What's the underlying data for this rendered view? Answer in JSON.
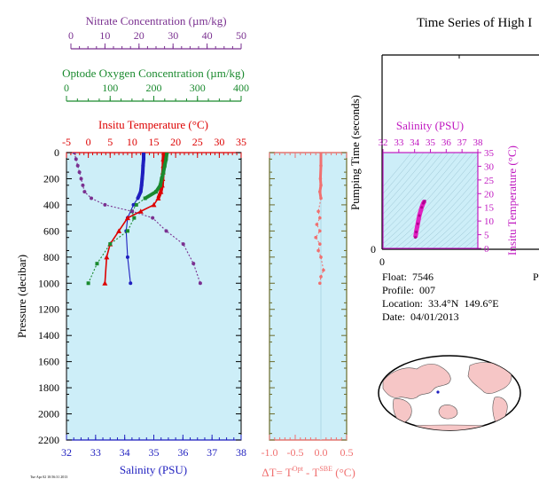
{
  "title": "Time Series of High I",
  "info": {
    "float": "Float:  7546",
    "profile": "Profile:  007",
    "location": "Location:  33.4°N  149.6°E",
    "date": "Date:  04/01/2013",
    "cut_letter": "P"
  },
  "footnote": "Tue Apr 02 10:56:31 2013",
  "chart_data": [
    {
      "type": "line",
      "name": "profile",
      "ylabel": "Pressure (decibar)",
      "ylim": [
        2200,
        0
      ],
      "yticks": [
        0,
        200,
        400,
        600,
        800,
        1000,
        1200,
        1400,
        1600,
        1800,
        2000,
        2200
      ],
      "axes": {
        "salinity": {
          "label": "Salinity (PSU)",
          "range": [
            32,
            38
          ],
          "ticks": [
            32,
            33,
            34,
            35,
            36,
            37,
            38
          ],
          "color": "#1f1fbf"
        },
        "temperature": {
          "label": "Insitu Temperature (°C)",
          "range": [
            -5,
            35
          ],
          "ticks": [
            -5,
            0,
            5,
            10,
            15,
            20,
            25,
            30,
            35
          ],
          "color": "#dd0000"
        },
        "oxygen": {
          "label": "Optode Oxygen Concentration (µm/kg)",
          "range": [
            0,
            400
          ],
          "ticks": [
            0,
            100,
            200,
            300,
            400
          ],
          "color": "#1a8a2e"
        },
        "nitrate": {
          "label": "Nitrate Concentration (µm/kg)",
          "range": [
            0,
            50
          ],
          "ticks": [
            0,
            10,
            20,
            30,
            40,
            50
          ],
          "color": "#7a3090"
        }
      },
      "series": [
        {
          "name": "Salinity (PSU)",
          "color": "#1f1fbf",
          "marker": "circle",
          "x": [
            34.65,
            34.65,
            34.63,
            34.62,
            34.6,
            34.58,
            34.55,
            34.45,
            34.3,
            34.1,
            34.05,
            34.1,
            34.2
          ],
          "y": [
            0,
            50,
            100,
            150,
            200,
            250,
            300,
            350,
            400,
            500,
            600,
            800,
            1000
          ]
        },
        {
          "name": "Insitu Temperature (°C)",
          "color": "#dd0000",
          "marker": "triangle",
          "x": [
            17.3,
            17.2,
            17.2,
            17.1,
            17.0,
            16.9,
            16.6,
            16.0,
            15.0,
            12.0,
            9.0,
            7.0,
            5.0,
            4.2,
            3.8
          ],
          "y": [
            0,
            50,
            100,
            150,
            200,
            250,
            300,
            350,
            400,
            450,
            500,
            600,
            700,
            800,
            1000
          ]
        },
        {
          "name": "Optode Oxygen Concentration (µm/kg)",
          "color": "#1a8a2e",
          "marker": "square",
          "x": [
            230,
            228,
            225,
            222,
            218,
            215,
            205,
            180,
            160,
            150,
            155,
            140,
            100,
            70,
            50
          ],
          "y": [
            0,
            50,
            100,
            150,
            200,
            250,
            300,
            350,
            400,
            450,
            500,
            600,
            700,
            850,
            1000
          ]
        },
        {
          "name": "Nitrate Concentration (µm/kg)",
          "color": "#7a3090",
          "marker": "circle",
          "x": [
            1,
            1.5,
            2,
            2.5,
            3,
            3.5,
            4,
            6,
            10,
            18,
            24,
            28,
            33,
            36,
            38
          ],
          "y": [
            0,
            50,
            100,
            150,
            200,
            250,
            300,
            350,
            400,
            450,
            500,
            600,
            700,
            850,
            1000
          ]
        }
      ]
    },
    {
      "type": "line",
      "name": "delta_t",
      "xlabel": "ΔT= Tᴼᵖᵗ - Tˢᴮᴱ (°C)",
      "xlabel_base": "ΔT= T",
      "xlabel_sup1": "Opt",
      "xlabel_mid": " - T",
      "xlabel_sup2": "SBE",
      "xlabel_end": " (°C)",
      "xlim": [
        -1.0,
        0.5
      ],
      "xticks": [
        -1.0,
        -0.5,
        0.0,
        0.5
      ],
      "xtick_labels": [
        "-1.0",
        "-0.5",
        "0.0",
        "0.5"
      ],
      "ylim": [
        2200,
        0
      ],
      "series": [
        {
          "name": "delta_t",
          "color": "#f07070",
          "x": [
            0.0,
            0.0,
            -0.01,
            0.0,
            -0.02,
            0.0,
            -0.05,
            -0.02,
            -0.08,
            -0.02,
            -0.1,
            -0.02,
            -0.05,
            0.0,
            0.05,
            0.0,
            -0.02
          ],
          "y": [
            0,
            100,
            200,
            250,
            300,
            350,
            450,
            500,
            550,
            600,
            650,
            700,
            750,
            800,
            900,
            950,
            1000
          ]
        }
      ]
    },
    {
      "type": "scatter",
      "name": "ts_diagram",
      "xlabel": "Salinity (PSU)",
      "ylabel": "Insitu Temperature (°C)",
      "xlim": [
        32,
        38
      ],
      "xticks": [
        32,
        33,
        34,
        35,
        36,
        37,
        38
      ],
      "ylim": [
        0,
        35
      ],
      "yticks": [
        0,
        5,
        10,
        15,
        20,
        25,
        30,
        35
      ],
      "color": "#e020c0",
      "x": [
        34.05,
        34.1,
        34.2,
        34.3,
        34.45,
        34.55,
        34.6,
        34.65
      ],
      "y": [
        4,
        6,
        9,
        12,
        15,
        16.5,
        17,
        17.3
      ]
    },
    {
      "type": "line",
      "name": "pumping_time",
      "ylabel": "Pumping Time (seconds)",
      "ylim": [
        0,
        null
      ],
      "ytick_labels": [
        "0"
      ],
      "xtick_labels": [
        "0"
      ],
      "series": []
    }
  ]
}
